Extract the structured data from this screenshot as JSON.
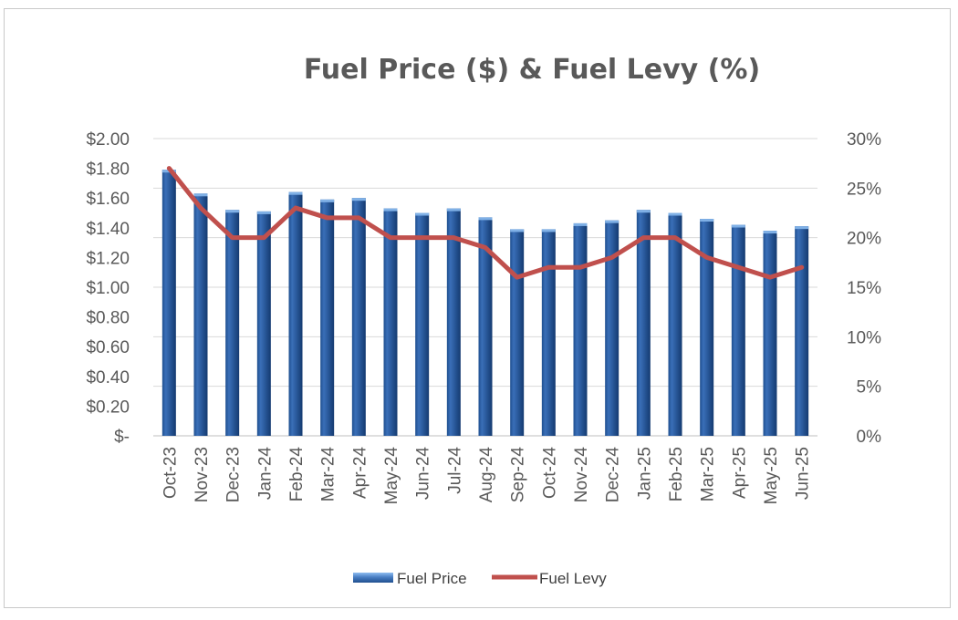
{
  "chart_data": {
    "type": "bar",
    "title": "Fuel Price ($) & Fuel Levy (%)",
    "xlabel": "",
    "ylabel": "",
    "categories": [
      "Oct-23",
      "Nov-23",
      "Dec-23",
      "Jan-24",
      "Feb-24",
      "Mar-24",
      "Apr-24",
      "May-24",
      "Jun-24",
      "Jul-24",
      "Aug-24",
      "Sep-24",
      "Oct-24",
      "Nov-24",
      "Dec-24",
      "Jan-25",
      "Feb-25",
      "Mar-25",
      "Apr-25",
      "May-25",
      "Jun-25"
    ],
    "series": [
      {
        "name": "Fuel Price",
        "type": "bar",
        "axis": "left",
        "values": [
          1.79,
          1.63,
          1.52,
          1.51,
          1.64,
          1.59,
          1.6,
          1.53,
          1.5,
          1.53,
          1.47,
          1.39,
          1.39,
          1.43,
          1.45,
          1.52,
          1.5,
          1.46,
          1.42,
          1.38,
          1.41
        ]
      },
      {
        "name": "Fuel Levy",
        "type": "line",
        "axis": "right",
        "values": [
          27,
          23,
          20,
          20,
          23,
          22,
          22,
          20,
          20,
          20,
          19,
          16,
          17,
          17,
          18,
          20,
          20,
          18,
          17,
          16,
          17
        ]
      }
    ],
    "ylim": [
      0,
      2.0
    ],
    "y2lim": [
      0,
      30
    ],
    "y_ticks": [
      "$-",
      "$0.20",
      "$0.40",
      "$0.60",
      "$0.80",
      "$1.00",
      "$1.20",
      "$1.40",
      "$1.60",
      "$1.80",
      "$2.00"
    ],
    "y2_ticks": [
      "0%",
      "5%",
      "10%",
      "15%",
      "20%",
      "25%",
      "30%"
    ],
    "grid": true,
    "legend_position": "bottom",
    "colors": {
      "bar": "#2e5c9e",
      "bar_light": "#7fb0e6",
      "line": "#c0504d",
      "grid": "#d9d9d9",
      "text": "#595959"
    }
  }
}
